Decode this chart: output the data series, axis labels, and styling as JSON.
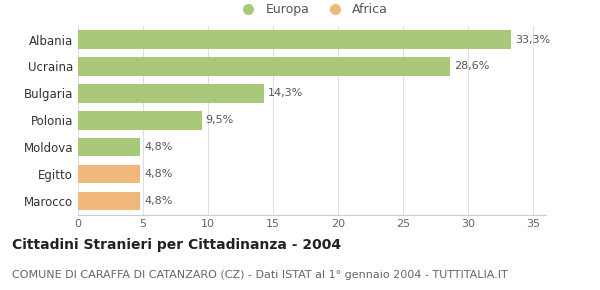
{
  "categories": [
    "Albania",
    "Ucraina",
    "Bulgaria",
    "Polonia",
    "Moldova",
    "Egitto",
    "Marocco"
  ],
  "values": [
    33.3,
    28.6,
    14.3,
    9.5,
    4.8,
    4.8,
    4.8
  ],
  "labels": [
    "33,3%",
    "28,6%",
    "14,3%",
    "9,5%",
    "4,8%",
    "4,8%",
    "4,8%"
  ],
  "colors": [
    "#a8c87a",
    "#a8c87a",
    "#a8c87a",
    "#a8c87a",
    "#a8c87a",
    "#f0b87a",
    "#f0b87a"
  ],
  "europa_color": "#a8c87a",
  "africa_color": "#f0b87a",
  "xlim": [
    0,
    36
  ],
  "xticks": [
    0,
    5,
    10,
    15,
    20,
    25,
    30,
    35
  ],
  "title": "Cittadini Stranieri per Cittadinanza - 2004",
  "subtitle": "COMUNE DI CARAFFA DI CATANZARO (CZ) - Dati ISTAT al 1° gennaio 2004 - TUTTITALIA.IT",
  "title_fontsize": 10,
  "subtitle_fontsize": 8,
  "legend_europa": "Europa",
  "legend_africa": "Africa",
  "background_color": "#ffffff",
  "bar_height": 0.68
}
